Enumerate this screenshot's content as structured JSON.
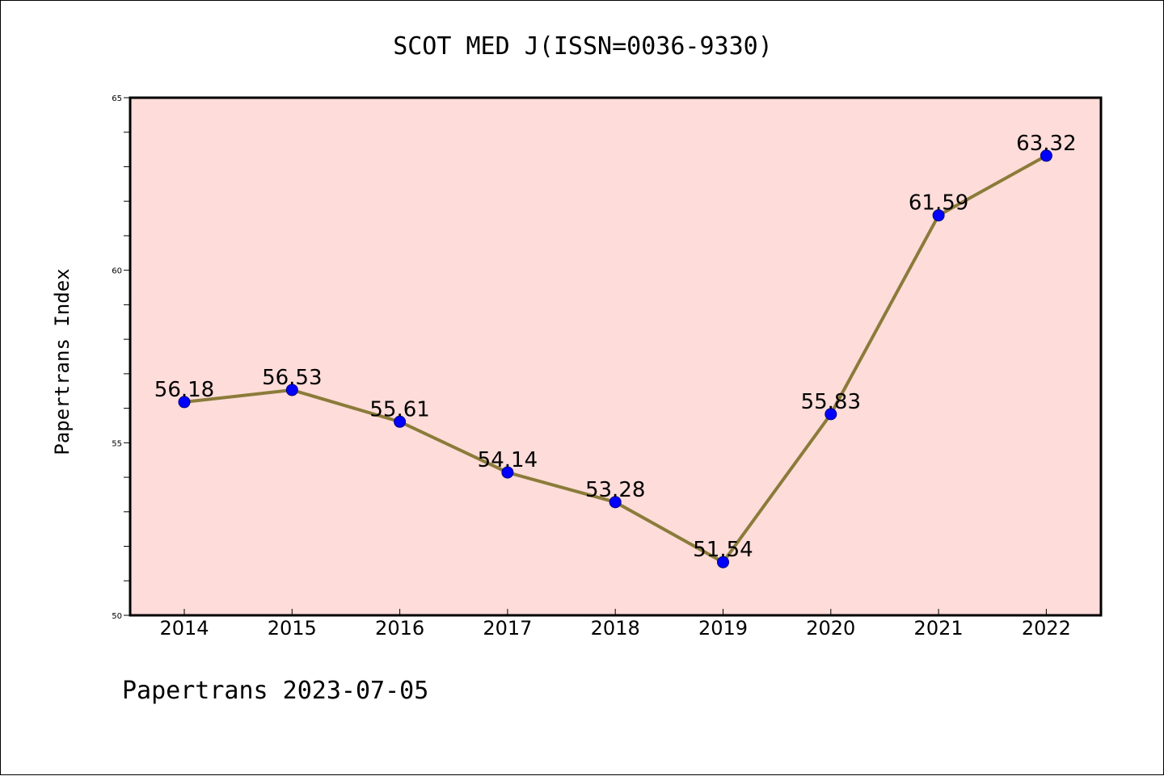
{
  "chart_data": {
    "type": "line",
    "title": "SCOT MED J(ISSN=0036-9330)",
    "xlabel": "",
    "ylabel": "Papertrans Index",
    "categories": [
      "2014",
      "2015",
      "2016",
      "2017",
      "2018",
      "2019",
      "2020",
      "2021",
      "2022"
    ],
    "series": [
      {
        "values": [
          56.18,
          56.53,
          55.61,
          54.14,
          53.28,
          51.54,
          55.83,
          61.59,
          63.32
        ],
        "labels": [
          "56.18",
          "56.53",
          "55.61",
          "54.14",
          "53.28",
          "51.54",
          "55.83",
          "61.59",
          "63.32"
        ]
      }
    ],
    "ylim": [
      50,
      65
    ],
    "yticks": [
      50,
      55,
      60,
      65
    ],
    "yticks_labels": [
      "50",
      "55",
      "60",
      "65"
    ],
    "y_minor_step": 1,
    "grid": false,
    "legend": "none",
    "colors": {
      "plot_background": "#fddcd9",
      "line": "#8b7b3a",
      "marker": "#0000ff",
      "axis": "#000000"
    }
  },
  "footer": "Papertrans 2023-07-05"
}
